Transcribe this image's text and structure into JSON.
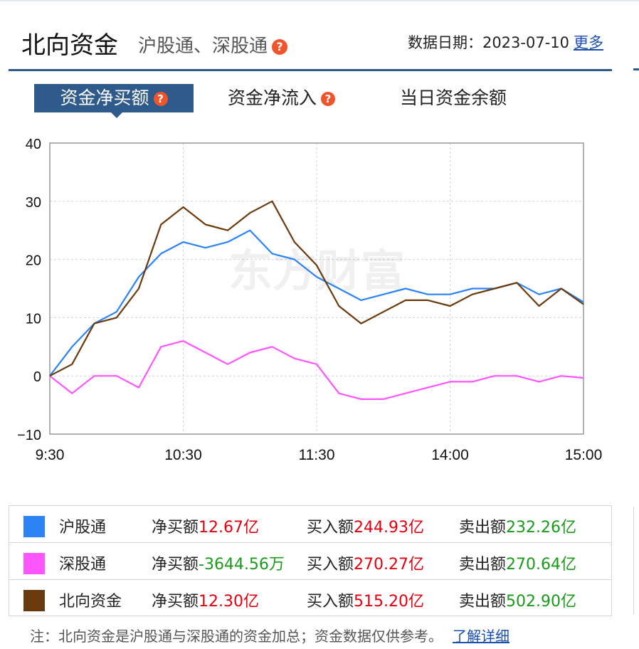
{
  "header": {
    "title": "北向资金",
    "subtitle": "沪股通、深股通",
    "date_label": "数据日期：",
    "date_value": "2023-07-10",
    "more_link": "更多",
    "help_icon": "question-icon"
  },
  "tabs": [
    {
      "label": "资金净买额",
      "active": true,
      "help": true
    },
    {
      "label": "资金净流入",
      "active": false,
      "help": true
    },
    {
      "label": "当日资金余额",
      "active": false,
      "help": false
    }
  ],
  "watermark": "东方财富",
  "colors": {
    "sh": "#2b83f6",
    "sz": "#ff55ff",
    "north": "#6b3a0c",
    "accent": "#2e5a8c",
    "red": "#e4000f",
    "green": "#1a9b1a"
  },
  "chart_data": {
    "type": "line",
    "title": "",
    "xlabel": "",
    "ylabel": "",
    "ylim": [
      -10,
      40
    ],
    "yticks": [
      "40",
      "30",
      "20",
      "10",
      "0",
      "−10"
    ],
    "xticks": [
      "9:30",
      "10:30",
      "11:30",
      "14:00",
      "15:00"
    ],
    "x": [
      "9:30",
      "9:40",
      "9:50",
      "10:00",
      "10:10",
      "10:20",
      "10:30",
      "10:40",
      "10:50",
      "11:00",
      "11:10",
      "11:20",
      "11:30",
      "13:10",
      "13:20",
      "13:30",
      "13:40",
      "13:50",
      "14:00",
      "14:10",
      "14:20",
      "14:30",
      "14:40",
      "14:50",
      "15:00"
    ],
    "grid": true,
    "series": [
      {
        "name": "沪股通",
        "values": [
          0,
          5,
          9,
          11,
          17,
          21,
          23,
          22,
          23,
          25,
          21,
          20,
          17,
          15,
          13,
          14,
          15,
          14,
          14,
          15,
          15,
          16,
          14,
          15,
          12.67
        ]
      },
      {
        "name": "深股通",
        "values": [
          0,
          -3,
          0,
          0,
          -2,
          5,
          6,
          4,
          2,
          4,
          5,
          3,
          2,
          -3,
          -4,
          -4,
          -3,
          -2,
          -1,
          -1,
          0,
          0,
          -1,
          0,
          -0.36
        ]
      },
      {
        "name": "北向资金",
        "values": [
          0,
          2,
          9,
          10,
          15,
          26,
          29,
          26,
          25,
          28,
          30,
          23,
          19,
          12,
          9,
          11,
          13,
          13,
          12,
          14,
          15,
          16,
          12,
          15,
          12.3
        ]
      }
    ]
  },
  "legend": [
    {
      "name": "沪股通",
      "net_label": "净买额",
      "net": "12.67亿",
      "net_color": "red",
      "buy_label": "买入额",
      "buy": "244.93亿",
      "sell_label": "卖出额",
      "sell": "232.26亿"
    },
    {
      "name": "深股通",
      "net_label": "净买额",
      "net": "-3644.56万",
      "net_color": "green",
      "buy_label": "买入额",
      "buy": "270.27亿",
      "sell_label": "卖出额",
      "sell": "270.64亿"
    },
    {
      "name": "北向资金",
      "net_label": "净买额",
      "net": "12.30亿",
      "net_color": "red",
      "buy_label": "买入额",
      "buy": "515.20亿",
      "sell_label": "卖出额",
      "sell": "502.90亿"
    }
  ],
  "note": {
    "text": "注：北向资金是沪股通与深股通的资金加总；资金数据仅供参考。",
    "link": "了解详细"
  }
}
